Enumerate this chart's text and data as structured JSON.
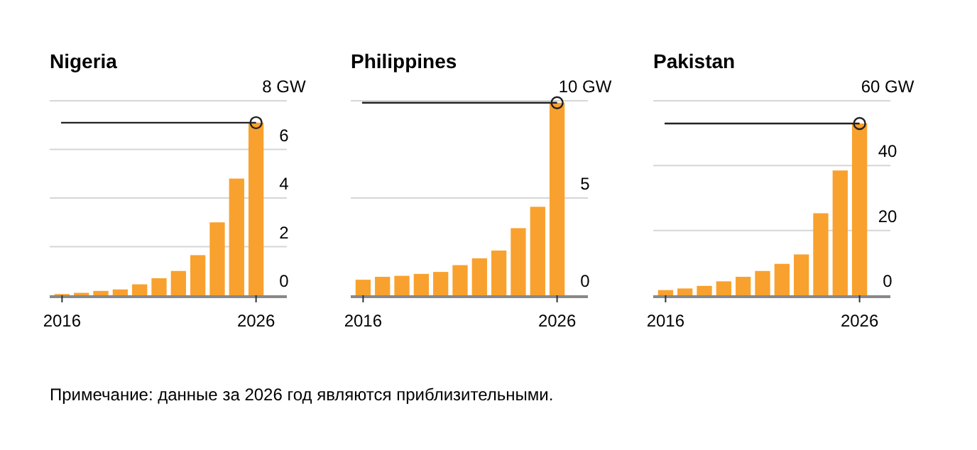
{
  "chart_data": [
    {
      "type": "bar",
      "title": "Nigeria",
      "categories": [
        "2016",
        null,
        null,
        null,
        null,
        null,
        null,
        null,
        null,
        null,
        "2026"
      ],
      "values": [
        0.05,
        0.1,
        0.18,
        0.24,
        0.45,
        0.7,
        1.0,
        1.65,
        3.0,
        4.8,
        7.1
      ],
      "color": "#f9a12e",
      "ylim": [
        0,
        8
      ],
      "yticks": [
        0,
        2,
        4,
        6,
        {
          "value": 8,
          "label": "8 GW"
        }
      ],
      "grid": "y",
      "ref_lines": [
        {
          "axis": "y",
          "value": 7.1,
          "color": "#222222"
        }
      ],
      "annotations": [
        "Примечание: данные за 2026 год являются приблизительными."
      ]
    },
    {
      "type": "bar",
      "title": "Philippines",
      "categories": [
        "2016",
        null,
        null,
        null,
        null,
        null,
        null,
        null,
        null,
        null,
        "2026"
      ],
      "values": [
        0.8,
        0.95,
        1.0,
        1.1,
        1.2,
        1.55,
        1.9,
        2.3,
        3.45,
        4.55,
        9.9
      ],
      "color": "#f9a12e",
      "ylim": [
        0,
        10
      ],
      "yticks": [
        0,
        5,
        {
          "value": 10,
          "label": "10 GW"
        }
      ],
      "grid": "y",
      "ref_lines": [
        {
          "axis": "y",
          "value": 9.9,
          "color": "#222222"
        }
      ]
    },
    {
      "type": "bar",
      "title": "Pakistan",
      "categories": [
        "2016",
        null,
        null,
        null,
        null,
        null,
        null,
        null,
        null,
        null,
        "2026"
      ],
      "values": [
        1.6,
        2.1,
        2.9,
        4.3,
        5.7,
        7.5,
        9.7,
        12.6,
        25.3,
        38.5,
        53
      ],
      "color": "#f9a12e",
      "ylim": [
        0,
        60
      ],
      "yticks": [
        0,
        20,
        40,
        {
          "value": 60,
          "label": "60 GW"
        }
      ],
      "grid": "y",
      "ref_lines": [
        {
          "axis": "y",
          "value": 53,
          "color": "#222222"
        }
      ]
    }
  ]
}
